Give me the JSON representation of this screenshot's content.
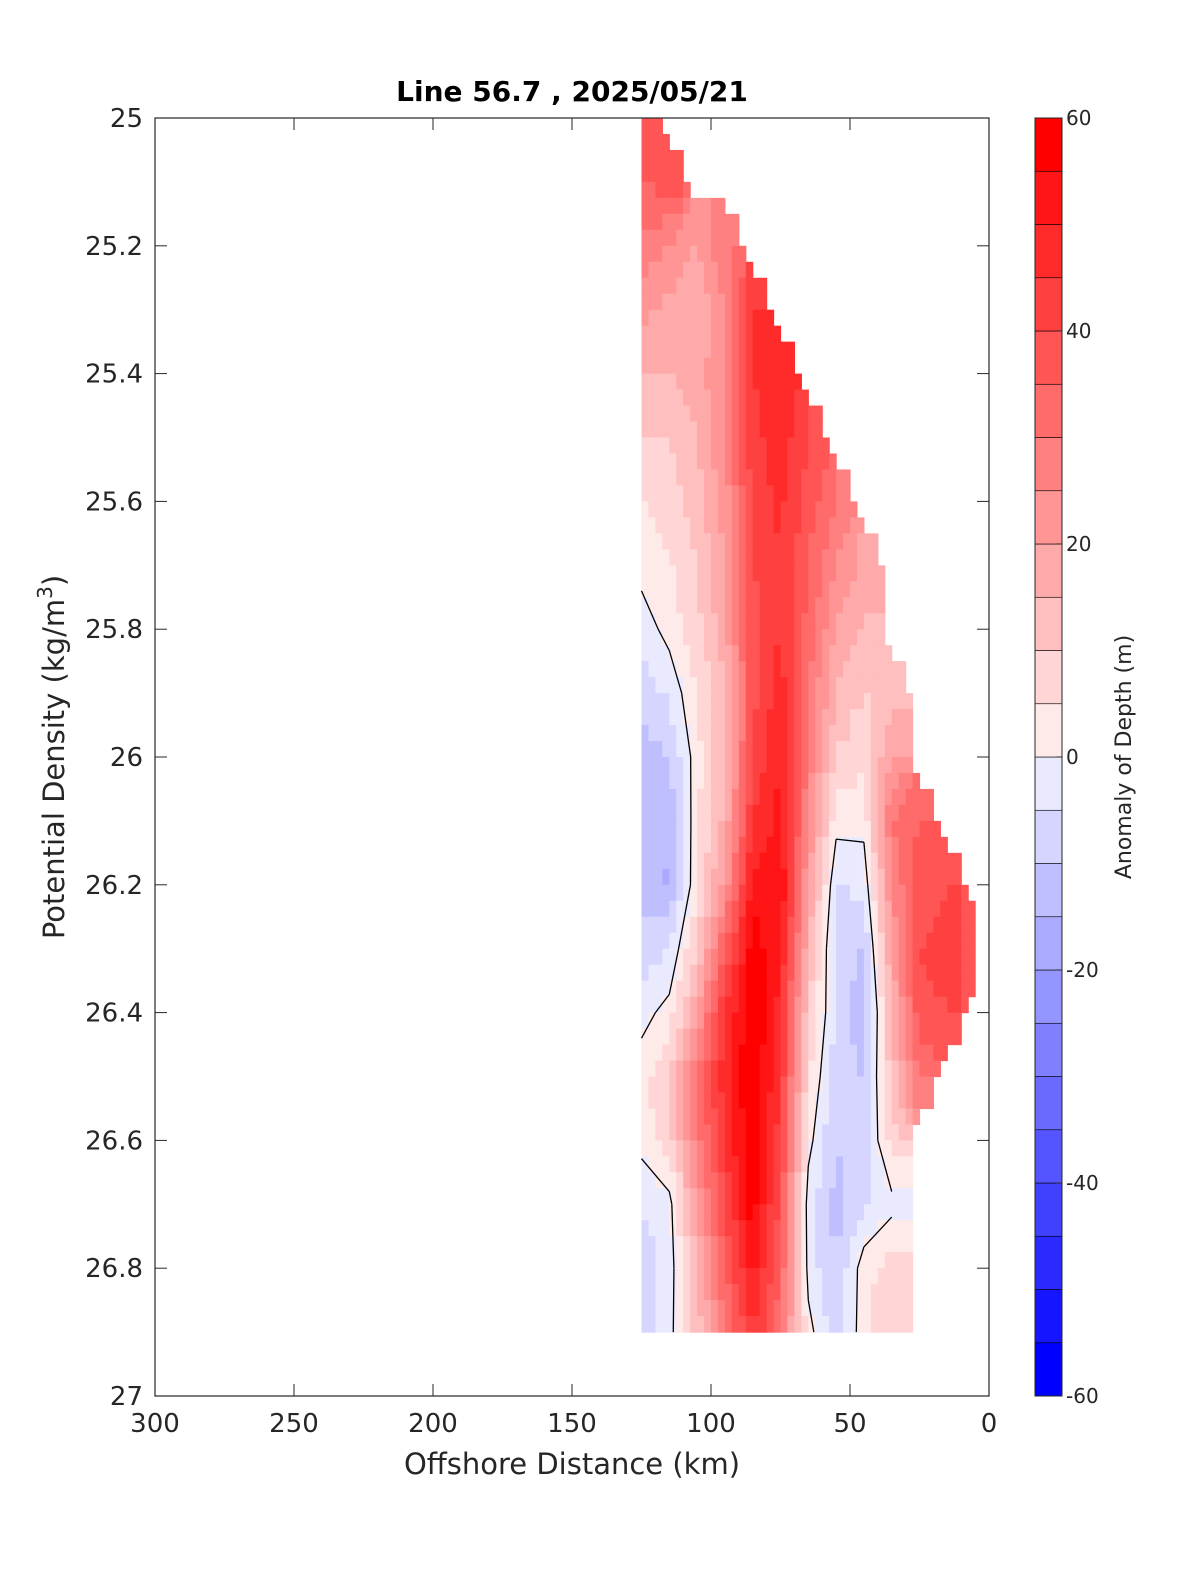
{
  "chart_data": {
    "type": "heatmap",
    "subtype": "filled-contour section",
    "title": "Line 56.7 , 2025/05/21",
    "xlabel": "Offshore Distance (km)",
    "ylabel_main": "Potential Density (kg/m",
    "ylabel_sup": "3",
    "ylabel_end": ")",
    "xlim": [
      300,
      0
    ],
    "x_reversed": true,
    "ylim": [
      25,
      27
    ],
    "y_reversed": true,
    "x_ticks": [
      300,
      250,
      200,
      150,
      100,
      50,
      0
    ],
    "y_ticks": [
      25,
      25.2,
      25.4,
      25.6,
      25.8,
      26,
      26.2,
      26.4,
      26.6,
      26.8,
      27
    ],
    "y_tick_labels": [
      "25",
      "25.2",
      "25.4",
      "25.6",
      "25.8",
      "26",
      "26.2",
      "26.4",
      "26.6",
      "26.8",
      "27"
    ],
    "grid": false,
    "colorbar": {
      "label": "Anomaly of Depth (m)",
      "range": [
        -60,
        60
      ],
      "step": 5,
      "ticks": [
        60,
        40,
        20,
        0,
        -20,
        -40,
        -60
      ],
      "colormap": "blue-white-red",
      "color_low": "#0000ff",
      "color_mid": "#ffffff",
      "color_high": "#ff0000"
    },
    "zero_contour_color": "#000000",
    "station_x_km": [
      125,
      115,
      105,
      95,
      85,
      75,
      65,
      55,
      45,
      35,
      25,
      15,
      5
    ],
    "density_levels": [
      25.0,
      25.1,
      25.2,
      25.3,
      25.4,
      25.5,
      25.6,
      25.7,
      25.8,
      25.9,
      26.0,
      26.1,
      26.2,
      26.3,
      26.4,
      26.5,
      26.6,
      26.7,
      26.8,
      26.9
    ],
    "anomaly_m": [
      [
        40,
        null,
        null,
        null,
        null,
        null,
        null,
        null,
        null,
        null,
        null,
        null,
        null
      ],
      [
        35,
        38,
        null,
        null,
        null,
        null,
        null,
        null,
        null,
        null,
        null,
        null,
        null
      ],
      [
        28,
        25,
        20,
        30,
        null,
        null,
        null,
        null,
        null,
        null,
        null,
        null,
        null
      ],
      [
        22,
        18,
        15,
        25,
        45,
        null,
        null,
        null,
        null,
        null,
        null,
        null,
        null
      ],
      [
        15,
        15,
        18,
        25,
        45,
        48,
        null,
        null,
        null,
        null,
        null,
        null,
        null
      ],
      [
        10,
        10,
        15,
        25,
        43,
        48,
        40,
        null,
        null,
        null,
        null,
        null,
        null
      ],
      [
        5,
        8,
        12,
        22,
        42,
        46,
        38,
        30,
        null,
        null,
        null,
        null,
        null
      ],
      [
        2,
        4,
        10,
        20,
        40,
        45,
        35,
        25,
        18,
        null,
        null,
        null,
        null
      ],
      [
        -3,
        2,
        8,
        18,
        38,
        45,
        33,
        20,
        14,
        null,
        null,
        null,
        null
      ],
      [
        -8,
        -4,
        5,
        15,
        38,
        48,
        30,
        15,
        10,
        12,
        null,
        null,
        null
      ],
      [
        -12,
        -10,
        3,
        14,
        40,
        50,
        28,
        10,
        5,
        20,
        null,
        null,
        null
      ],
      [
        -14,
        -14,
        4,
        16,
        45,
        52,
        26,
        2,
        2,
        30,
        35,
        null,
        null
      ],
      [
        -12,
        -16,
        5,
        22,
        52,
        55,
        20,
        -5,
        -4,
        25,
        38,
        40,
        null
      ],
      [
        -8,
        -5,
        10,
        35,
        58,
        50,
        15,
        -8,
        -10,
        20,
        40,
        42,
        38
      ],
      [
        -2,
        2,
        20,
        45,
        60,
        48,
        10,
        -6,
        -14,
        15,
        38,
        40,
        null
      ],
      [
        3,
        10,
        30,
        48,
        60,
        45,
        6,
        -8,
        -10,
        12,
        30,
        null,
        null
      ],
      [
        2,
        8,
        28,
        45,
        60,
        42,
        2,
        -10,
        -8,
        8,
        null,
        null,
        null
      ],
      [
        -5,
        -2,
        20,
        40,
        58,
        38,
        -3,
        -12,
        -6,
        -2,
        null,
        null,
        null
      ],
      [
        -8,
        -3,
        15,
        35,
        52,
        35,
        -2,
        -10,
        3,
        8,
        null,
        null,
        null
      ],
      [
        -10,
        -2,
        12,
        28,
        45,
        30,
        2,
        -8,
        3,
        10,
        null,
        null,
        null
      ]
    ]
  }
}
